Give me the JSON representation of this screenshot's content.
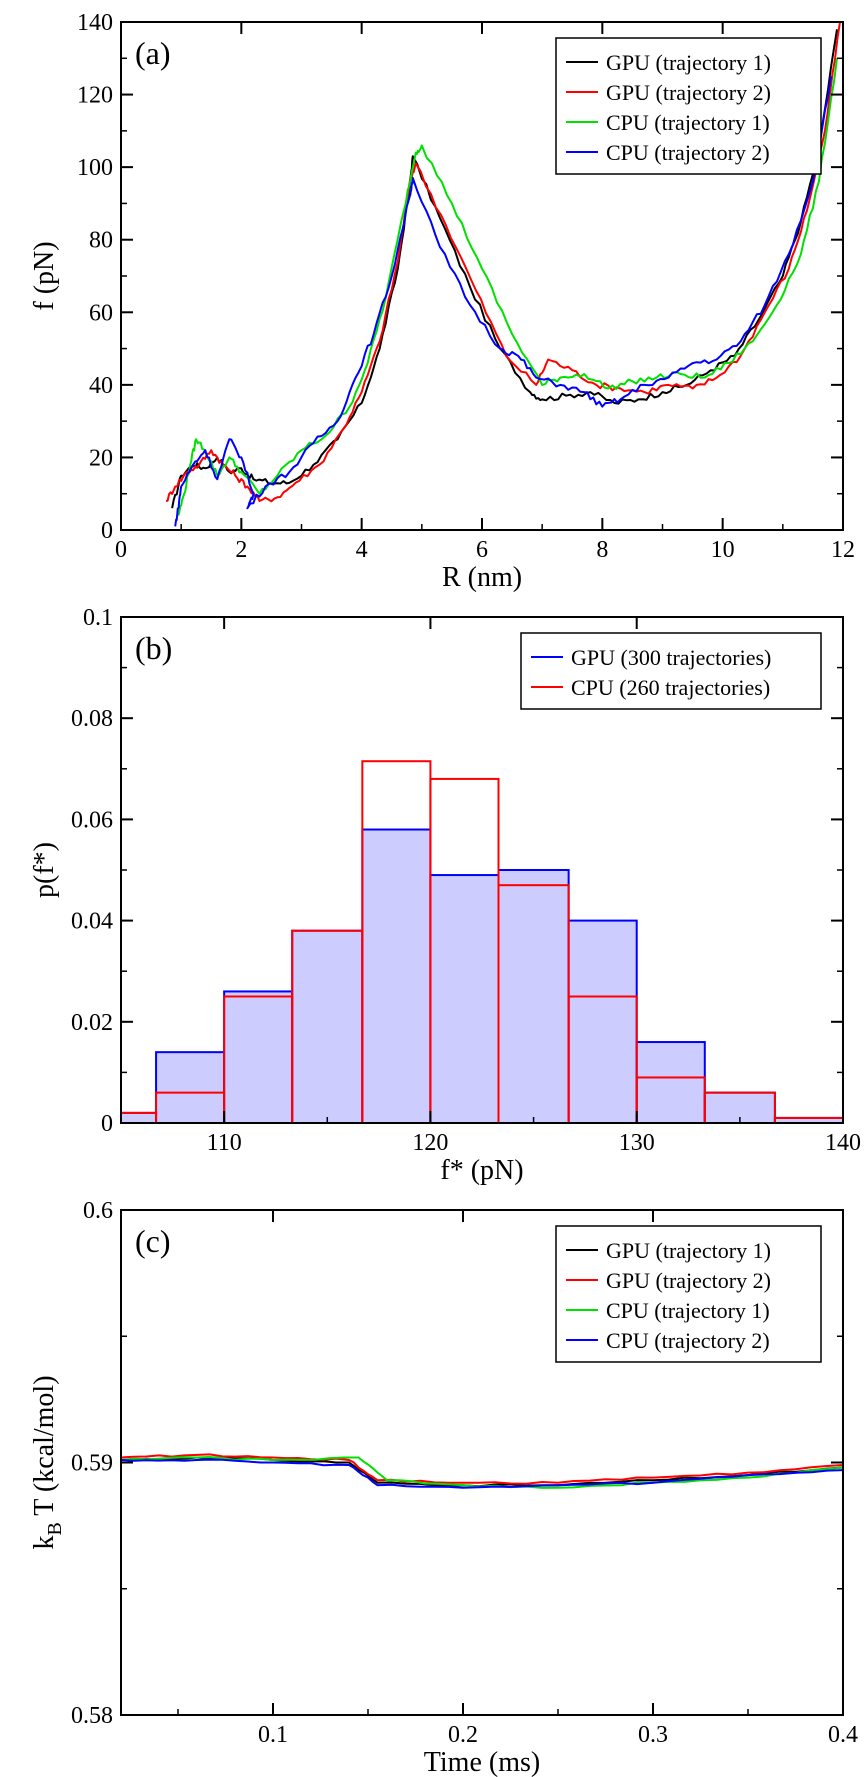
{
  "chart_data": [
    {
      "panel": "(a)",
      "type": "line",
      "xlabel": "R (nm)",
      "ylabel": "f (pN)",
      "xlim": [
        0,
        12
      ],
      "ylim": [
        0,
        140
      ],
      "xticks": [
        0,
        2,
        4,
        6,
        8,
        10,
        12
      ],
      "yticks": [
        0,
        20,
        40,
        60,
        80,
        100,
        120,
        140
      ],
      "grid": false,
      "legend_position": "top-right",
      "series": [
        {
          "name": "GPU (trajectory 1)",
          "color": "#000000",
          "x": [
            0.85,
            1.0,
            1.2,
            1.4,
            1.6,
            1.8,
            2.0,
            2.2,
            2.5,
            2.8,
            3.2,
            3.6,
            4.0,
            4.3,
            4.6,
            4.8,
            4.85,
            5.3,
            5.8,
            6.3,
            6.8,
            7.0,
            7.4,
            7.8,
            8.2,
            8.6,
            9.0,
            9.4,
            9.8,
            10.2,
            10.6,
            11.0,
            11.3,
            11.6,
            11.9
          ],
          "y": [
            6,
            15,
            18,
            17,
            20,
            16,
            17,
            14,
            13,
            13,
            18,
            25,
            35,
            50,
            72,
            95,
            103,
            86,
            67,
            50,
            38,
            36,
            37,
            38,
            35,
            36,
            38,
            40,
            44,
            48,
            58,
            70,
            85,
            105,
            138
          ]
        },
        {
          "name": "GPU (trajectory 2)",
          "color": "#ff0000",
          "x": [
            0.75,
            0.9,
            1.1,
            1.3,
            1.5,
            1.7,
            1.9,
            2.1,
            2.3,
            2.6,
            2.9,
            3.3,
            3.7,
            4.0,
            4.3,
            4.6,
            4.8,
            4.9,
            5.4,
            5.9,
            6.4,
            6.9,
            7.1,
            7.5,
            7.9,
            8.3,
            8.7,
            9.1,
            9.5,
            9.9,
            10.3,
            10.7,
            11.1,
            11.4,
            11.7,
            11.95
          ],
          "y": [
            8,
            12,
            16,
            18,
            22,
            18,
            15,
            12,
            8,
            9,
            13,
            18,
            28,
            38,
            52,
            74,
            96,
            101,
            84,
            66,
            48,
            40,
            47,
            44,
            40,
            39,
            38,
            40,
            39,
            42,
            48,
            60,
            72,
            88,
            110,
            140
          ]
        },
        {
          "name": "CPU (trajectory 1)",
          "color": "#00e000",
          "x": [
            0.95,
            1.05,
            1.15,
            1.25,
            1.4,
            1.6,
            1.8,
            2.0,
            2.3,
            2.6,
            3.0,
            3.4,
            3.8,
            4.1,
            4.4,
            4.7,
            4.9,
            5.0,
            5.5,
            6.0,
            6.5,
            7.0,
            7.3,
            7.7,
            8.1,
            8.5,
            8.9,
            9.3,
            9.7,
            10.1,
            10.5,
            10.9,
            11.3,
            11.6,
            11.9
          ],
          "y": [
            4,
            10,
            18,
            25,
            22,
            15,
            20,
            16,
            10,
            15,
            22,
            26,
            34,
            46,
            64,
            88,
            104,
            106,
            90,
            72,
            54,
            40,
            42,
            43,
            39,
            41,
            42,
            43,
            42,
            46,
            52,
            62,
            76,
            96,
            130
          ]
        },
        {
          "name": "CPU (trajectory 2)",
          "color": "#0000ff",
          "x": [
            0.9,
            0.95,
            1.0,
            1.2,
            1.4,
            1.6,
            1.8,
            2.0,
            2.2,
            2.1,
            2.4,
            2.8,
            3.2,
            3.6,
            3.9,
            4.2,
            4.5,
            4.8,
            4.85,
            5.3,
            5.8,
            6.3,
            6.6,
            6.9,
            7.3,
            7.7,
            8.0,
            8.3,
            8.7,
            9.1,
            9.5,
            9.9,
            10.3,
            10.7,
            11.1,
            11.5,
            11.8
          ],
          "y": [
            1,
            6,
            12,
            18,
            22,
            14,
            25,
            20,
            10,
            6,
            12,
            16,
            24,
            30,
            42,
            54,
            70,
            92,
            97,
            78,
            62,
            50,
            48,
            42,
            40,
            38,
            34,
            36,
            40,
            42,
            46,
            47,
            52,
            62,
            76,
            96,
            125
          ]
        }
      ]
    },
    {
      "panel": "(b)",
      "type": "bar",
      "xlabel": "f* (pN)",
      "ylabel": "p(f*)",
      "xlim": [
        105,
        140
      ],
      "ylim": [
        0,
        0.1
      ],
      "xticks": [
        110,
        120,
        130,
        140
      ],
      "yticks": [
        0,
        0.02,
        0.04,
        0.06,
        0.08,
        0.1
      ],
      "ytick_labels": [
        "0",
        "0.02",
        "0.04",
        "0.06",
        "0.08",
        "0.1"
      ],
      "grid": false,
      "legend_position": "top-right",
      "bin_edges": [
        103.3,
        106.7,
        110,
        113.3,
        116.7,
        120,
        123.3,
        126.7,
        130,
        133.3,
        136.7,
        140
      ],
      "series": [
        {
          "name": "GPU (300 trajectories)",
          "color": "#0000ff",
          "fill": "#ccccff",
          "values": [
            0.002,
            0.014,
            0.026,
            0.038,
            0.058,
            0.049,
            0.05,
            0.04,
            0.016,
            0.006,
            0.001
          ]
        },
        {
          "name": "CPU (260 trajectories)",
          "color": "#ff0000",
          "values": [
            0.002,
            0.006,
            0.025,
            0.038,
            0.0715,
            0.068,
            0.047,
            0.025,
            0.009,
            0.006,
            0.001
          ]
        }
      ]
    },
    {
      "panel": "(c)",
      "type": "line",
      "xlabel": "Time (ms)",
      "ylabel_main": "k",
      "ylabel_sub": "B",
      "ylabel_rest": " T (kcal/mol)",
      "xlim": [
        0.02,
        0.4
      ],
      "ylim": [
        0.58,
        0.6
      ],
      "xticks": [
        0.1,
        0.2,
        0.3,
        0.4
      ],
      "yticks": [
        0.58,
        0.59,
        0.6
      ],
      "grid": false,
      "legend_position": "top-right",
      "series": [
        {
          "name": "GPU (trajectory 1)",
          "color": "#000000",
          "x": [
            0.02,
            0.06,
            0.1,
            0.14,
            0.155,
            0.2,
            0.25,
            0.3,
            0.35,
            0.4
          ],
          "y": [
            0.5901,
            0.5902,
            0.5901,
            0.59,
            0.5892,
            0.5891,
            0.5891,
            0.5893,
            0.5895,
            0.5898
          ]
        },
        {
          "name": "GPU (trajectory 2)",
          "color": "#ff0000",
          "x": [
            0.02,
            0.06,
            0.1,
            0.14,
            0.155,
            0.2,
            0.25,
            0.3,
            0.35,
            0.4
          ],
          "y": [
            0.5902,
            0.5903,
            0.5902,
            0.5901,
            0.5893,
            0.5892,
            0.5892,
            0.5894,
            0.5896,
            0.5899
          ]
        },
        {
          "name": "CPU (trajectory 1)",
          "color": "#00e000",
          "x": [
            0.02,
            0.06,
            0.1,
            0.145,
            0.16,
            0.2,
            0.25,
            0.3,
            0.35,
            0.4
          ],
          "y": [
            0.5901,
            0.5902,
            0.5901,
            0.5902,
            0.5893,
            0.5891,
            0.589,
            0.5892,
            0.5894,
            0.5898
          ]
        },
        {
          "name": "CPU (trajectory 2)",
          "color": "#0000ff",
          "x": [
            0.02,
            0.06,
            0.1,
            0.14,
            0.155,
            0.2,
            0.25,
            0.3,
            0.35,
            0.4
          ],
          "y": [
            0.5901,
            0.5901,
            0.59,
            0.5899,
            0.5891,
            0.589,
            0.5891,
            0.5892,
            0.5895,
            0.5897
          ]
        }
      ]
    }
  ]
}
